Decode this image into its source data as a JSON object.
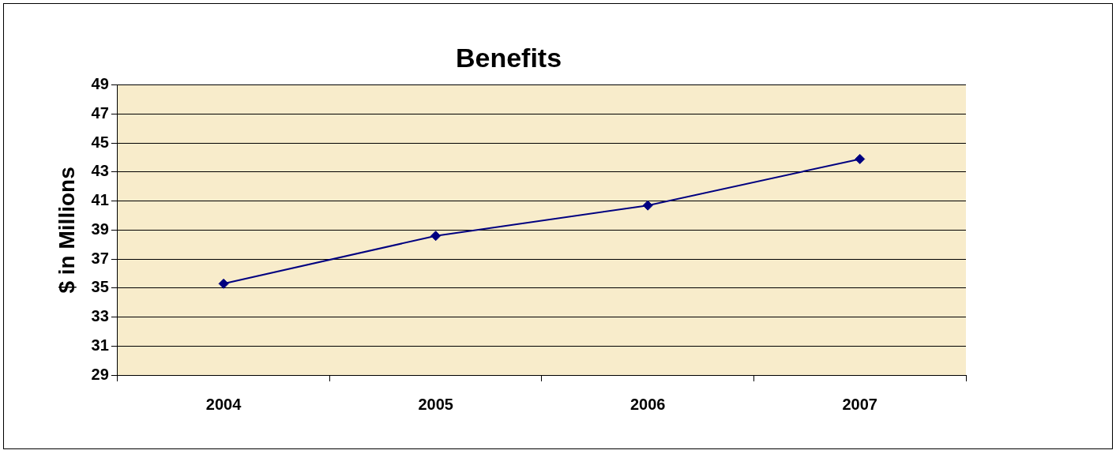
{
  "chart_data": {
    "type": "line",
    "title": "Benefits",
    "ylabel": "$ in Millions",
    "categories": [
      "2004",
      "2005",
      "2006",
      "2007"
    ],
    "series": [
      {
        "color": "#000080",
        "values": [
          35.3,
          38.6,
          40.7,
          43.9
        ]
      }
    ],
    "ylim": [
      29,
      49
    ],
    "yticks": [
      29,
      31,
      33,
      35,
      37,
      39,
      41,
      43,
      45,
      47,
      49
    ],
    "grid": "y",
    "legend": false,
    "marker": "diamond",
    "line_style": "solid"
  }
}
